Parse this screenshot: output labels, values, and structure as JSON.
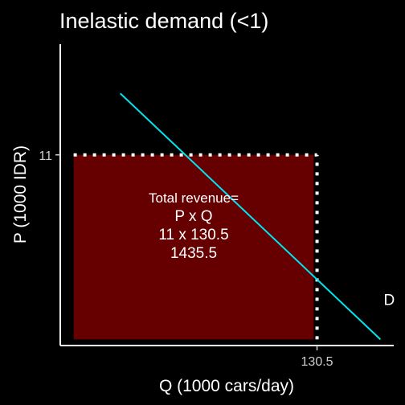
{
  "chart_data": {
    "type": "line",
    "title": "Inelastic demand (<1)",
    "xlabel": "Q (1000 cars/day)",
    "ylabel": "P (1000 IDR)",
    "xlim": [
      92,
      142
    ],
    "ylim": [
      9.45,
      11.9
    ],
    "x_ticks": [
      {
        "value": 130.5,
        "label": "130.5"
      }
    ],
    "y_ticks": [
      {
        "value": 11,
        "label": "11"
      }
    ],
    "grid": false,
    "legend": "none",
    "series": [
      {
        "color": "#00e5ee",
        "x": [
          101,
          140
        ],
        "y": [
          11.5,
          9.5
        ]
      }
    ],
    "curve_label": {
      "text": "D",
      "x": 140.5,
      "y": 9.78
    },
    "revenue_rect": {
      "x": [
        94,
        130
      ],
      "y": [
        9.5,
        11
      ],
      "color": "#660000"
    },
    "reference_lines": [
      {
        "axis": "y",
        "value": 11,
        "from": 94,
        "to": 130.5,
        "style": "dotted",
        "color": "#ffffff"
      },
      {
        "axis": "x",
        "value": 130.5,
        "from": 9.5,
        "to": 11,
        "style": "dotted",
        "color": "#ffffff"
      }
    ],
    "annotation": {
      "lines": [
        "Total revenue=",
        "P x Q",
        "11 x 130.5",
        "1435.5"
      ],
      "x": 112,
      "y": 10.35
    }
  }
}
